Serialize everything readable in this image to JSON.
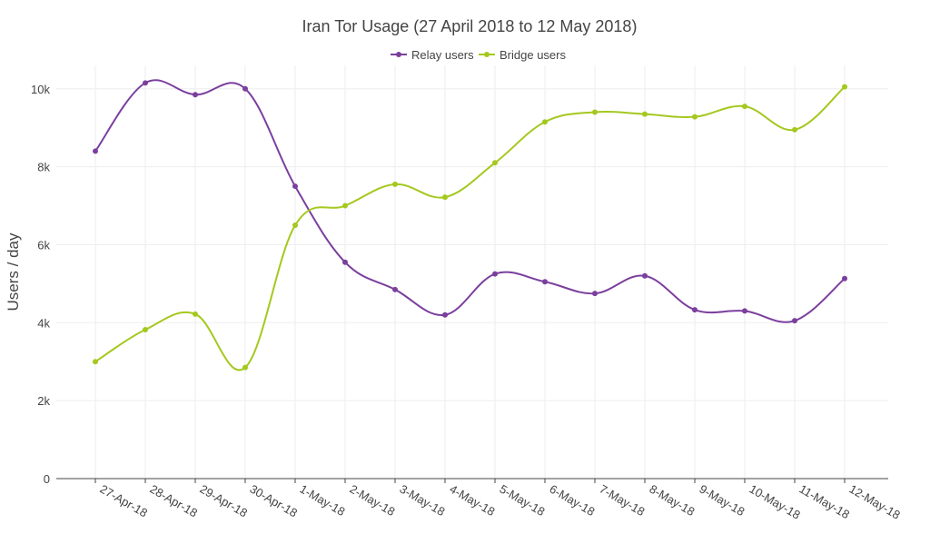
{
  "chart_data": {
    "type": "line",
    "title": "Iran Tor Usage (27 April 2018 to 12 May 2018)",
    "xlabel": "",
    "ylabel": "Users / day",
    "categories": [
      "27-Apr-18",
      "28-Apr-18",
      "29-Apr-18",
      "30-Apr-18",
      "1-May-18",
      "2-May-18",
      "3-May-18",
      "4-May-18",
      "5-May-18",
      "6-May-18",
      "7-May-18",
      "8-May-18",
      "9-May-18",
      "10-May-18",
      "11-May-18",
      "12-May-18"
    ],
    "y_ticks": [
      0,
      2000,
      4000,
      6000,
      8000,
      10000
    ],
    "y_tick_labels": [
      "0",
      "2k",
      "4k",
      "6k",
      "8k",
      "10k"
    ],
    "ylim": [
      0,
      10600
    ],
    "grid": true,
    "legend_placement": "top-center",
    "series": [
      {
        "name": "Relay users",
        "color": "#7b3f9e",
        "values": [
          8400,
          10150,
          9850,
          10000,
          7500,
          5550,
          4850,
          4200,
          5250,
          5050,
          4750,
          5200,
          4330,
          4300,
          4050,
          5130
        ]
      },
      {
        "name": "Bridge users",
        "color": "#a4c81e",
        "values": [
          3000,
          3820,
          4220,
          2850,
          6500,
          7000,
          7550,
          7220,
          8100,
          9150,
          9400,
          9350,
          9280,
          9550,
          8950,
          10050
        ]
      }
    ]
  }
}
